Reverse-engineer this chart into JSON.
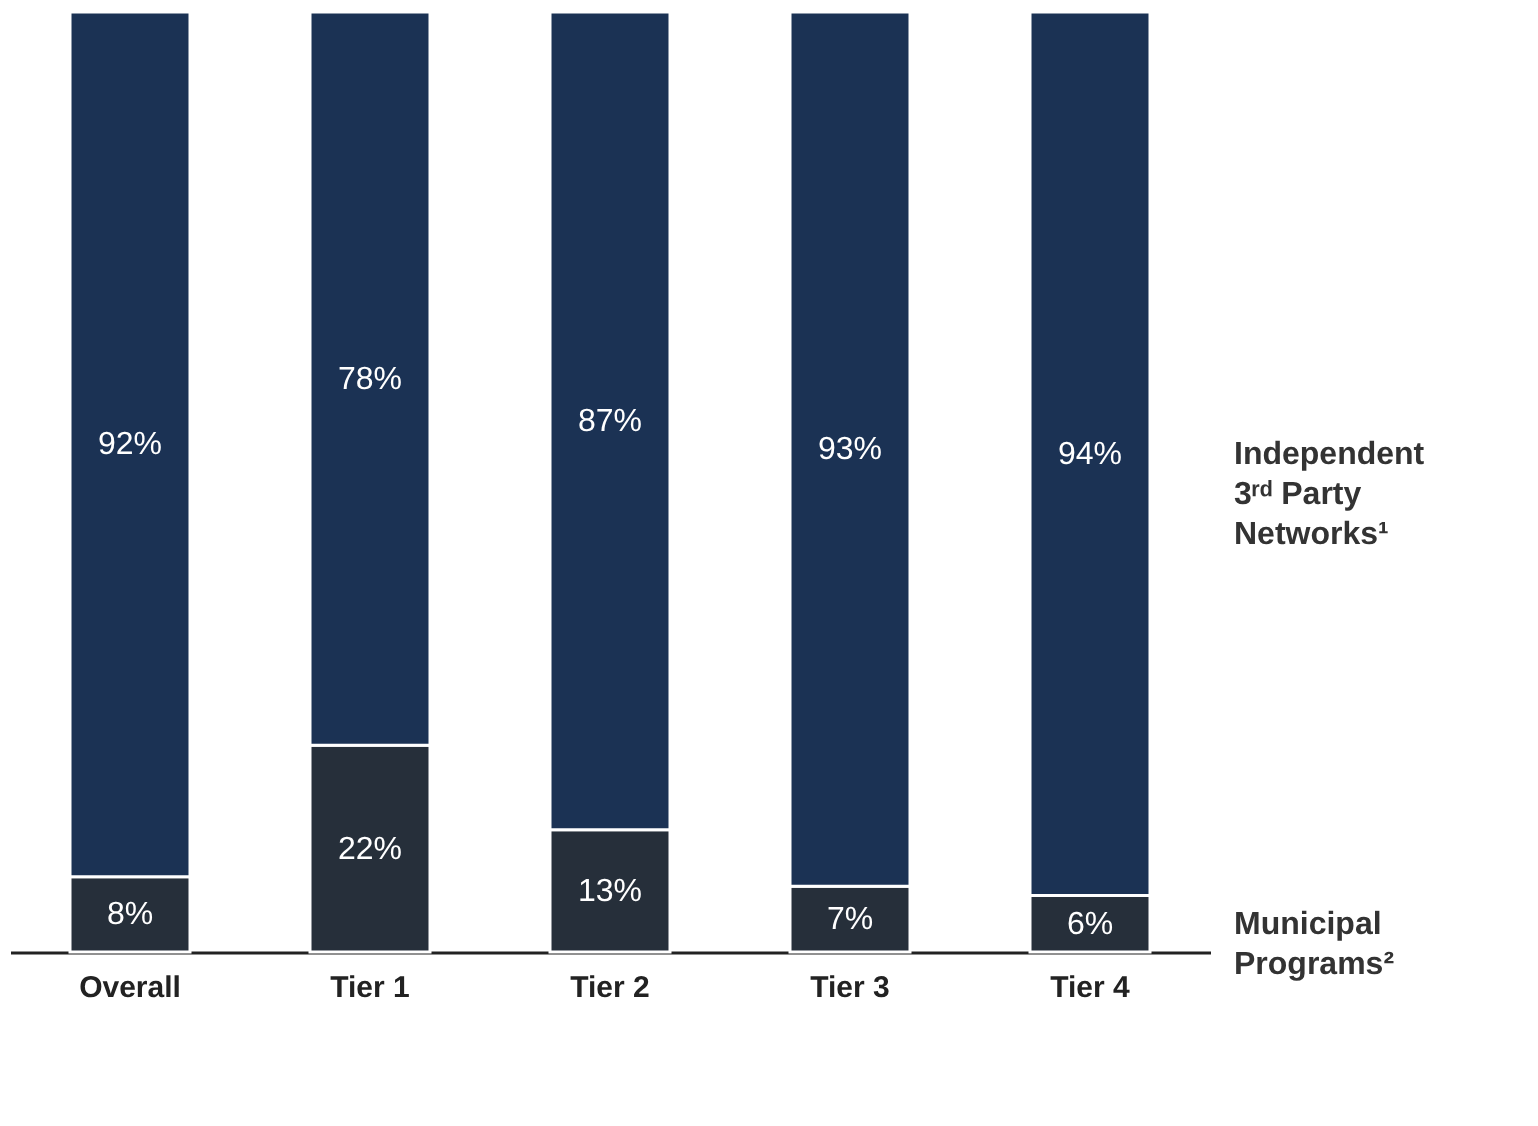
{
  "chart_data": {
    "type": "bar",
    "stacked": true,
    "categories": [
      "Overall",
      "Tier 1",
      "Tier 2",
      "Tier 3",
      "Tier 4"
    ],
    "series": [
      {
        "name": "Municipal Programs²",
        "color": "#262f3a",
        "values": [
          8,
          22,
          13,
          7,
          6
        ],
        "value_labels": [
          "8%",
          "22%",
          "13%",
          "7%",
          "6%"
        ]
      },
      {
        "name": "Independent 3ʳᵈ Party Networks¹",
        "color": "#1b3254",
        "values": [
          92,
          78,
          87,
          93,
          94
        ],
        "value_labels": [
          "92%",
          "78%",
          "87%",
          "93%",
          "94%"
        ]
      }
    ]
  }
}
